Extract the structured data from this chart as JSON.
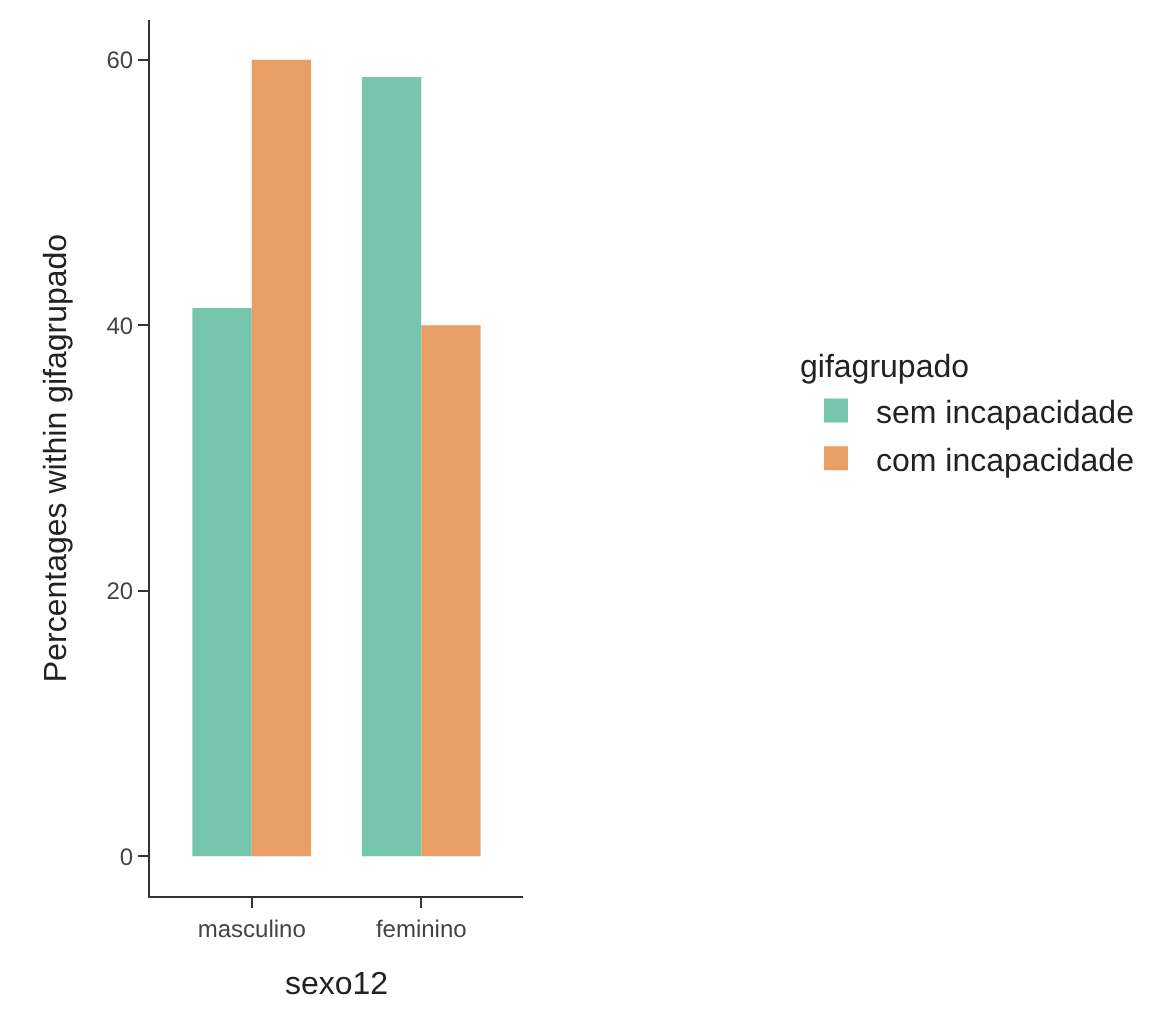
{
  "chart_data": {
    "type": "bar",
    "xlabel": "sexo12",
    "ylabel": "Percentages within gifagrupado",
    "legend_title": "gifagrupado",
    "categories": [
      "masculino",
      "feminino"
    ],
    "series": [
      {
        "name": "sem incapacidade",
        "color": "#76c5ad",
        "values": [
          41.3,
          58.7
        ]
      },
      {
        "name": "com incapacidade",
        "color": "#e89f65",
        "values": [
          60.0,
          40.0
        ]
      }
    ],
    "ylim": [
      -3,
      63
    ],
    "yticks": [
      0,
      20,
      40,
      60
    ],
    "legend": "right"
  }
}
